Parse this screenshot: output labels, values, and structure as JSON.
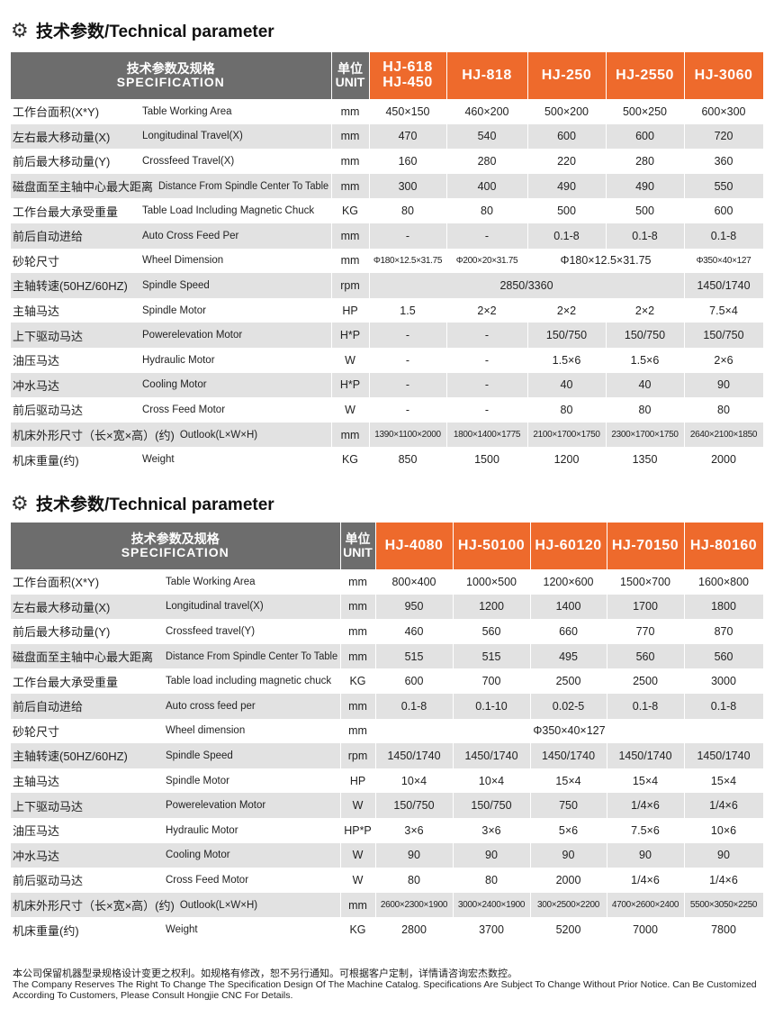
{
  "section1": {
    "title": "技术参数/Technical parameter",
    "header": {
      "spec_cn": "技术参数及规格",
      "spec_en": "SPECIFICATION",
      "unit_cn": "单位",
      "unit_en": "UNIT",
      "models": [
        "HJ-618\nHJ-450",
        "HJ-818",
        "HJ-250",
        "HJ-2550",
        "HJ-3060"
      ]
    },
    "rows": [
      {
        "cn": "工作台面积(X*Y)",
        "en": "Table Working Area",
        "unit": "mm",
        "cells": [
          [
            "450×150"
          ],
          [
            "460×200"
          ],
          [
            "500×200"
          ],
          [
            "500×250"
          ],
          [
            "600×300"
          ]
        ]
      },
      {
        "cn": "左右最大移动量(X)",
        "en": "Longitudinal Travel(X)",
        "unit": "mm",
        "cells": [
          [
            "470"
          ],
          [
            "540"
          ],
          [
            "600"
          ],
          [
            "600"
          ],
          [
            "720"
          ]
        ]
      },
      {
        "cn": "前后最大移动量(Y)",
        "en": "Crossfeed Travel(X)",
        "unit": "mm",
        "cells": [
          [
            "160"
          ],
          [
            "280"
          ],
          [
            "220"
          ],
          [
            "280"
          ],
          [
            "360"
          ]
        ]
      },
      {
        "cn": "磁盘面至主轴中心最大距离",
        "en": "Distance From Spindle Center To Table",
        "unit": "mm",
        "cells": [
          [
            "300"
          ],
          [
            "400"
          ],
          [
            "490"
          ],
          [
            "490"
          ],
          [
            "550"
          ]
        ]
      },
      {
        "cn": "工作台最大承受重量",
        "en": "Table Load Including Magnetic Chuck",
        "unit": "KG",
        "cells": [
          [
            "80"
          ],
          [
            "80"
          ],
          [
            "500"
          ],
          [
            "500"
          ],
          [
            "600"
          ]
        ]
      },
      {
        "cn": "前后自动进给",
        "en": "Auto Cross Feed Per",
        "unit": "mm",
        "cells": [
          [
            "-"
          ],
          [
            "-"
          ],
          [
            "0.1-8"
          ],
          [
            "0.1-8"
          ],
          [
            "0.1-8"
          ]
        ]
      },
      {
        "cn": "砂轮尺寸",
        "en": "Wheel Dimension",
        "unit": "mm",
        "cells": [
          [
            "Φ180×12.5×31.75",
            1,
            "small"
          ],
          [
            "Φ200×20×31.75",
            1,
            "small"
          ],
          [
            "Φ180×12.5×31.75",
            2
          ],
          [
            "Φ350×40×127",
            1,
            "small"
          ]
        ]
      },
      {
        "cn": "主轴转速(50HZ/60HZ)",
        "en": "Spindle Speed",
        "unit": "rpm",
        "cells": [
          [
            "2850/3360",
            4
          ],
          [
            "1450/1740"
          ]
        ]
      },
      {
        "cn": "主轴马达",
        "en": "Spindle Motor",
        "unit": "HP",
        "cells": [
          [
            "1.5"
          ],
          [
            "2×2"
          ],
          [
            "2×2"
          ],
          [
            "2×2"
          ],
          [
            "7.5×4"
          ]
        ]
      },
      {
        "cn": "上下驱动马达",
        "en": "Powerelevation Motor",
        "unit": "H*P",
        "cells": [
          [
            "-"
          ],
          [
            "-"
          ],
          [
            "150/750"
          ],
          [
            "150/750"
          ],
          [
            "150/750"
          ]
        ]
      },
      {
        "cn": "油压马达",
        "en": "Hydraulic Motor",
        "unit": "W",
        "cells": [
          [
            "-"
          ],
          [
            "-"
          ],
          [
            "1.5×6"
          ],
          [
            "1.5×6"
          ],
          [
            "2×6"
          ]
        ]
      },
      {
        "cn": "冲水马达",
        "en": "Cooling Motor",
        "unit": "H*P",
        "cells": [
          [
            "-"
          ],
          [
            "-"
          ],
          [
            "40"
          ],
          [
            "40"
          ],
          [
            "90"
          ]
        ]
      },
      {
        "cn": "前后驱动马达",
        "en": "Cross Feed Motor",
        "unit": "W",
        "cells": [
          [
            "-"
          ],
          [
            "-"
          ],
          [
            "80"
          ],
          [
            "80"
          ],
          [
            "80"
          ]
        ]
      },
      {
        "cn": "机床外形尺寸（长×宽×高）(约)",
        "en": "Outlook(L×W×H)",
        "unit": "mm",
        "cells": [
          [
            "1390×1100×2000",
            1,
            "small"
          ],
          [
            "1800×1400×1775",
            1,
            "small"
          ],
          [
            "2100×1700×1750",
            1,
            "small"
          ],
          [
            "2300×1700×1750",
            1,
            "small"
          ],
          [
            "2640×2100×1850",
            1,
            "small"
          ]
        ]
      },
      {
        "cn": "机床重量(约)",
        "en": "Weight",
        "unit": "KG",
        "cells": [
          [
            "850"
          ],
          [
            "1500"
          ],
          [
            "1200"
          ],
          [
            "1350"
          ],
          [
            "2000"
          ]
        ]
      }
    ]
  },
  "section2": {
    "title": "技术参数/Technical parameter",
    "header": {
      "spec_cn": "技术参数及规格",
      "spec_en": "SPECIFICATION",
      "unit_cn": "单位",
      "unit_en": "UNIT",
      "models": [
        "HJ-4080",
        "HJ-50100",
        "HJ-60120",
        "HJ-70150",
        "HJ-80160"
      ]
    },
    "rows": [
      {
        "cn": "工作台面积(X*Y)",
        "en": "Table Working Area",
        "unit": "mm",
        "cells": [
          [
            "800×400"
          ],
          [
            "1000×500"
          ],
          [
            "1200×600"
          ],
          [
            "1500×700"
          ],
          [
            "1600×800"
          ]
        ]
      },
      {
        "cn": "左右最大移动量(X)",
        "en": "Longitudinal travel(X)",
        "unit": "mm",
        "cells": [
          [
            "950"
          ],
          [
            "1200"
          ],
          [
            "1400"
          ],
          [
            "1700"
          ],
          [
            "1800"
          ]
        ]
      },
      {
        "cn": "前后最大移动量(Y)",
        "en": "Crossfeed travel(Y)",
        "unit": "mm",
        "cells": [
          [
            "460"
          ],
          [
            "560"
          ],
          [
            "660"
          ],
          [
            "770"
          ],
          [
            "870"
          ]
        ]
      },
      {
        "cn": "磁盘面至主轴中心最大距离",
        "en": "Distance From Spindle Center To Table",
        "unit": "mm",
        "cells": [
          [
            "515"
          ],
          [
            "515"
          ],
          [
            "495"
          ],
          [
            "560"
          ],
          [
            "560"
          ]
        ]
      },
      {
        "cn": "工作台最大承受重量",
        "en": "Table load including magnetic chuck",
        "unit": "KG",
        "cells": [
          [
            "600"
          ],
          [
            "700"
          ],
          [
            "2500"
          ],
          [
            "2500"
          ],
          [
            "3000"
          ]
        ]
      },
      {
        "cn": "前后自动进给",
        "en": "Auto cross feed per",
        "unit": "mm",
        "cells": [
          [
            "0.1-8"
          ],
          [
            "0.1-10"
          ],
          [
            "0.02-5"
          ],
          [
            "0.1-8"
          ],
          [
            "0.1-8"
          ]
        ]
      },
      {
        "cn": "砂轮尺寸",
        "en": "Wheel dimension",
        "unit": "mm",
        "cells": [
          [
            "Φ350×40×127",
            5
          ]
        ]
      },
      {
        "cn": "主轴转速(50HZ/60HZ)",
        "en": "Spindle Speed",
        "unit": "rpm",
        "cells": [
          [
            "1450/1740"
          ],
          [
            "1450/1740"
          ],
          [
            "1450/1740"
          ],
          [
            "1450/1740"
          ],
          [
            "1450/1740"
          ]
        ]
      },
      {
        "cn": "主轴马达",
        "en": "Spindle Motor",
        "unit": "HP",
        "cells": [
          [
            "10×4"
          ],
          [
            "10×4"
          ],
          [
            "15×4"
          ],
          [
            "15×4"
          ],
          [
            "15×4"
          ]
        ]
      },
      {
        "cn": "上下驱动马达",
        "en": "Powerelevation Motor",
        "unit": "W",
        "cells": [
          [
            "150/750"
          ],
          [
            "150/750"
          ],
          [
            "750"
          ],
          [
            "1/4×6"
          ],
          [
            "1/4×6"
          ]
        ]
      },
      {
        "cn": "油压马达",
        "en": "Hydraulic Motor",
        "unit": "HP*P",
        "cells": [
          [
            "3×6"
          ],
          [
            "3×6"
          ],
          [
            "5×6"
          ],
          [
            "7.5×6"
          ],
          [
            "10×6"
          ]
        ]
      },
      {
        "cn": "冲水马达",
        "en": "Cooling Motor",
        "unit": "W",
        "cells": [
          [
            "90"
          ],
          [
            "90"
          ],
          [
            "90"
          ],
          [
            "90"
          ],
          [
            "90"
          ]
        ]
      },
      {
        "cn": "前后驱动马达",
        "en": "Cross Feed Motor",
        "unit": "W",
        "cells": [
          [
            "80"
          ],
          [
            "80"
          ],
          [
            "2000"
          ],
          [
            "1/4×6"
          ],
          [
            "1/4×6"
          ]
        ]
      },
      {
        "cn": "机床外形尺寸（长×宽×高）(约)",
        "en": "Outlook(L×W×H)",
        "unit": "mm",
        "cells": [
          [
            "2600×2300×1900",
            1,
            "small"
          ],
          [
            "3000×2400×1900",
            1,
            "small"
          ],
          [
            "300×2500×2200",
            1,
            "small"
          ],
          [
            "4700×2600×2400",
            1,
            "small"
          ],
          [
            "5500×3050×2250",
            1,
            "small"
          ]
        ]
      },
      {
        "cn": "机床重量(约)",
        "en": "Weight",
        "unit": "KG",
        "cells": [
          [
            "2800"
          ],
          [
            "3700"
          ],
          [
            "5200"
          ],
          [
            "7000"
          ],
          [
            "7800"
          ]
        ]
      }
    ]
  },
  "footer": {
    "cn": "本公司保留机器型录规格设计变更之权利。如规格有修改，恕不另行通知。可根据客户定制，详情请咨询宏杰数控。",
    "en": "The Company Reserves The Right To Change The Specification Design Of The Machine Catalog. Specifications Are Subject To Change Without Prior Notice. Can Be Customized According To Customers, Please Consult Hongjie CNC For Details."
  },
  "colors": {
    "header_gray": "#6d6d6d",
    "model_orange": "#ee6a2c",
    "row_gray": "#e2e2e2"
  }
}
